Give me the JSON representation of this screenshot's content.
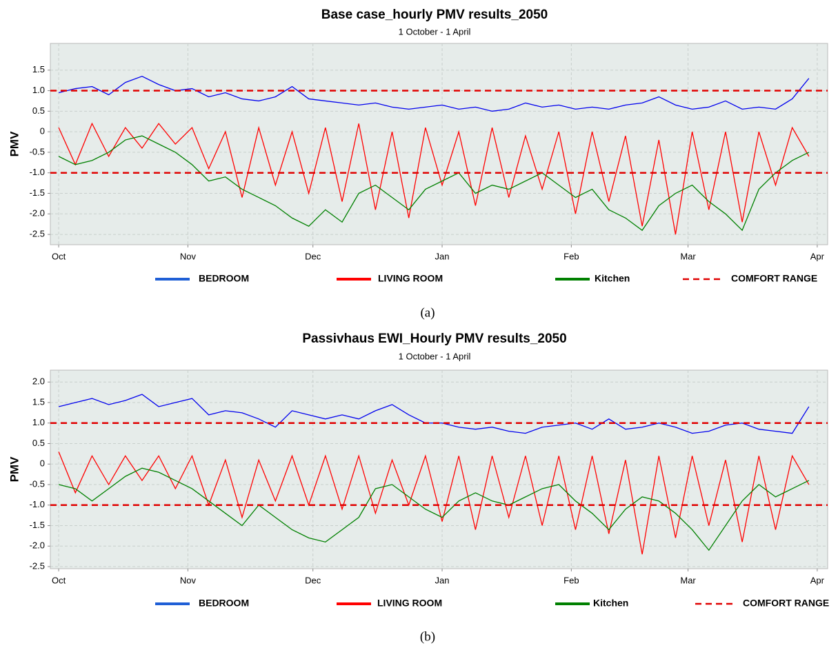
{
  "chart_data": [
    {
      "type": "line",
      "title": "Base case_hourly PMV results_2050",
      "subtitle": "1 October - 1 April",
      "y_label": "PMV",
      "caption": "(a)",
      "x": [
        0,
        4,
        8,
        12,
        16,
        20,
        24,
        28,
        32,
        36,
        40,
        44,
        48,
        52,
        56,
        60,
        64,
        68,
        72,
        76,
        80,
        84,
        88,
        92,
        96,
        100,
        104,
        108,
        112,
        116,
        120,
        124,
        128,
        132,
        136,
        140,
        144,
        148,
        152,
        156,
        160,
        164,
        168,
        172,
        176,
        180
      ],
      "xlim": [
        -2,
        184.5
      ],
      "xticks": [
        {
          "value": 0,
          "label": "Oct"
        },
        {
          "value": 31,
          "label": "Nov"
        },
        {
          "value": 61,
          "label": "Dec"
        },
        {
          "value": 92,
          "label": "Jan"
        },
        {
          "value": 123,
          "label": "Feb"
        },
        {
          "value": 151,
          "label": "Mar"
        },
        {
          "value": 182,
          "label": "Apr"
        }
      ],
      "ylim": [
        -2.75,
        2.15
      ],
      "yticks": [
        1.5,
        {
          "value": 1,
          "label": "1.0"
        },
        0.5,
        0,
        -0.5,
        {
          "value": -1,
          "label": "-1.0"
        },
        -1.5,
        {
          "value": -2,
          "label": "-2.0"
        },
        -2.5
      ],
      "grid": true,
      "series": [
        {
          "name": "BEDROOM",
          "color": "#0000ee",
          "values": [
            0.95,
            1.05,
            1.1,
            0.9,
            1.2,
            1.35,
            1.15,
            1.0,
            1.05,
            0.85,
            0.95,
            0.8,
            0.75,
            0.85,
            1.1,
            0.8,
            0.75,
            0.7,
            0.65,
            0.7,
            0.6,
            0.55,
            0.6,
            0.65,
            0.55,
            0.6,
            0.5,
            0.55,
            0.7,
            0.6,
            0.65,
            0.55,
            0.6,
            0.55,
            0.65,
            0.7,
            0.85,
            0.65,
            0.55,
            0.6,
            0.75,
            0.55,
            0.6,
            0.55,
            0.8,
            1.3
          ]
        },
        {
          "name": "LIVING ROOM",
          "color": "#ff0000",
          "values": [
            0.1,
            -0.8,
            0.2,
            -0.6,
            0.1,
            -0.4,
            0.2,
            -0.3,
            0.1,
            -0.9,
            0.0,
            -1.6,
            0.1,
            -1.3,
            0.0,
            -1.5,
            0.1,
            -1.7,
            0.2,
            -1.9,
            0.0,
            -2.1,
            0.1,
            -1.3,
            0.0,
            -1.8,
            0.1,
            -1.6,
            -0.1,
            -1.4,
            0.0,
            -2.0,
            0.0,
            -1.7,
            -0.1,
            -2.3,
            -0.2,
            -2.5,
            0.0,
            -1.9,
            0.0,
            -2.2,
            0.0,
            -1.3,
            0.1,
            -0.6
          ]
        },
        {
          "name": "Kitchen",
          "color": "#008000",
          "values": [
            -0.6,
            -0.8,
            -0.7,
            -0.5,
            -0.2,
            -0.1,
            -0.3,
            -0.5,
            -0.8,
            -1.2,
            -1.1,
            -1.4,
            -1.6,
            -1.8,
            -2.1,
            -2.3,
            -1.9,
            -2.2,
            -1.5,
            -1.3,
            -1.6,
            -1.9,
            -1.4,
            -1.2,
            -1.0,
            -1.5,
            -1.3,
            -1.4,
            -1.2,
            -1.0,
            -1.3,
            -1.6,
            -1.4,
            -1.9,
            -2.1,
            -2.4,
            -1.8,
            -1.5,
            -1.3,
            -1.7,
            -2.0,
            -2.4,
            -1.4,
            -1.0,
            -0.7,
            -0.5
          ]
        }
      ],
      "comfort_range": {
        "name": "COMFORT RANGE",
        "color": "#e00000",
        "values": [
          1,
          -1
        ]
      }
    },
    {
      "type": "line",
      "title": "Passivhaus EWI_Hourly PMV results_2050",
      "subtitle": "1 October - 1 April",
      "y_label": "PMV",
      "caption": "(b)",
      "x": [
        0,
        4,
        8,
        12,
        16,
        20,
        24,
        28,
        32,
        36,
        40,
        44,
        48,
        52,
        56,
        60,
        64,
        68,
        72,
        76,
        80,
        84,
        88,
        92,
        96,
        100,
        104,
        108,
        112,
        116,
        120,
        124,
        128,
        132,
        136,
        140,
        144,
        148,
        152,
        156,
        160,
        164,
        168,
        172,
        176,
        180
      ],
      "xlim": [
        -2,
        184.5
      ],
      "xticks": [
        {
          "value": 0,
          "label": "Oct"
        },
        {
          "value": 31,
          "label": "Nov"
        },
        {
          "value": 61,
          "label": "Dec"
        },
        {
          "value": 92,
          "label": "Jan"
        },
        {
          "value": 123,
          "label": "Feb"
        },
        {
          "value": 151,
          "label": "Mar"
        },
        {
          "value": 182,
          "label": "Apr"
        }
      ],
      "ylim": [
        -2.55,
        2.29
      ],
      "yticks": [
        {
          "value": 2,
          "label": "2.0"
        },
        1.5,
        {
          "value": 1,
          "label": "1.0"
        },
        0.5,
        0,
        -0.5,
        {
          "value": -1,
          "label": "-1.0"
        },
        -1.5,
        {
          "value": -2,
          "label": "-2.0"
        },
        -2.5
      ],
      "grid": true,
      "series": [
        {
          "name": "BEDROOM",
          "color": "#0000ee",
          "values": [
            1.4,
            1.5,
            1.6,
            1.45,
            1.55,
            1.7,
            1.4,
            1.5,
            1.6,
            1.2,
            1.3,
            1.25,
            1.1,
            0.9,
            1.3,
            1.2,
            1.1,
            1.2,
            1.1,
            1.3,
            1.45,
            1.2,
            1.0,
            1.0,
            0.9,
            0.85,
            0.9,
            0.8,
            0.75,
            0.9,
            0.95,
            1.0,
            0.85,
            1.1,
            0.85,
            0.9,
            1.0,
            0.9,
            0.75,
            0.8,
            0.95,
            1.0,
            0.85,
            0.8,
            0.75,
            1.4
          ]
        },
        {
          "name": "LIVING ROOM",
          "color": "#ff0000",
          "values": [
            0.3,
            -0.7,
            0.2,
            -0.5,
            0.2,
            -0.4,
            0.2,
            -0.6,
            0.2,
            -1.0,
            0.1,
            -1.3,
            0.1,
            -0.9,
            0.2,
            -1.0,
            0.2,
            -1.1,
            0.2,
            -1.2,
            0.1,
            -1.0,
            0.2,
            -1.4,
            0.2,
            -1.6,
            0.2,
            -1.3,
            0.2,
            -1.5,
            0.2,
            -1.6,
            0.2,
            -1.7,
            0.1,
            -2.2,
            0.2,
            -1.8,
            0.2,
            -1.5,
            0.1,
            -1.9,
            0.2,
            -1.6,
            0.2,
            -0.5
          ]
        },
        {
          "name": "Kitchen",
          "color": "#008000",
          "values": [
            -0.5,
            -0.6,
            -0.9,
            -0.6,
            -0.3,
            -0.1,
            -0.2,
            -0.4,
            -0.6,
            -0.9,
            -1.2,
            -1.5,
            -1.0,
            -1.3,
            -1.6,
            -1.8,
            -1.9,
            -1.6,
            -1.3,
            -0.6,
            -0.5,
            -0.8,
            -1.1,
            -1.3,
            -0.9,
            -0.7,
            -0.9,
            -1.0,
            -0.8,
            -0.6,
            -0.5,
            -0.9,
            -1.2,
            -1.6,
            -1.1,
            -0.8,
            -0.9,
            -1.2,
            -1.6,
            -2.1,
            -1.5,
            -0.9,
            -0.5,
            -0.8,
            -0.6,
            -0.4
          ]
        }
      ],
      "comfort_range": {
        "name": "COMFORT RANGE",
        "color": "#e00000",
        "values": [
          1,
          -1
        ]
      }
    }
  ]
}
